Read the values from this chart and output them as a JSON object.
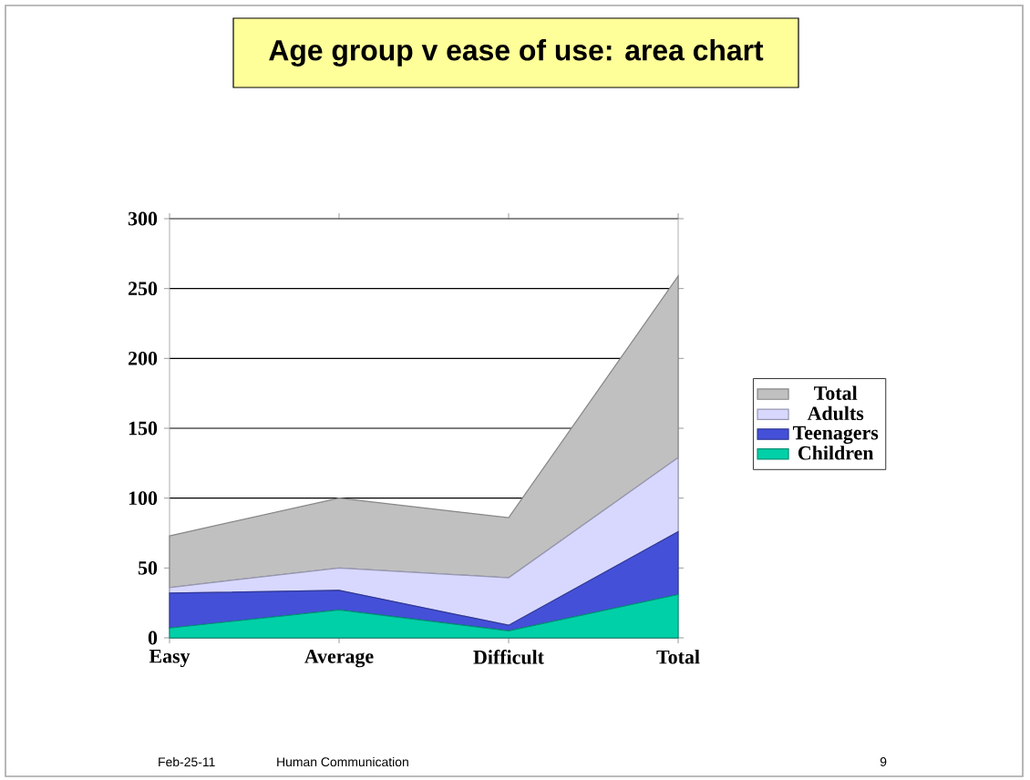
{
  "chart_data": {
    "type": "area",
    "stacked": true,
    "title": "Age group v ease of use: area chart",
    "categories": [
      "Easy",
      "Average",
      "Difficult",
      "Total"
    ],
    "series": [
      {
        "name": "Children",
        "color": "#00d0a8",
        "values": [
          7,
          20,
          5,
          31
        ]
      },
      {
        "name": "Teenagers",
        "color": "#4450d8",
        "values": [
          25,
          14,
          4,
          45
        ]
      },
      {
        "name": "Adults",
        "color": "#d8d8ff",
        "values": [
          4,
          16,
          34,
          53
        ]
      },
      {
        "name": "Total",
        "color": "#c0c0c0",
        "values": [
          37,
          50,
          43,
          130
        ]
      }
    ],
    "ylim": [
      0,
      300
    ],
    "yticks": [
      0,
      50,
      100,
      150,
      200,
      250,
      300
    ],
    "grid": "y",
    "legend": "right",
    "annotations": [
      "Feb-25-11",
      "Human Communication",
      "9"
    ]
  }
}
